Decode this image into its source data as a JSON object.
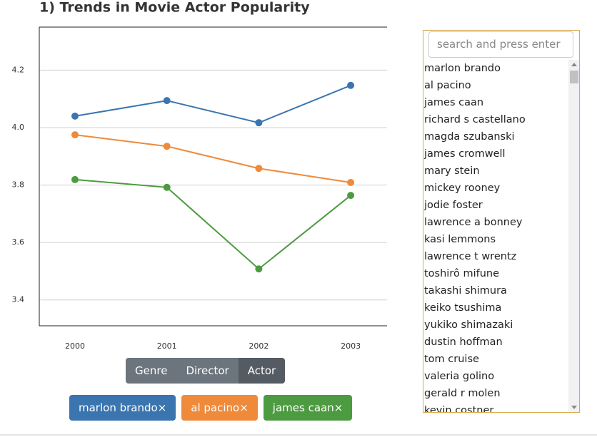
{
  "chart_data": {
    "type": "line",
    "title": "1) Trends in Movie Actor Popularity",
    "categories": [
      "2000",
      "2001",
      "2002",
      "2003"
    ],
    "series": [
      {
        "name": "marlon brando",
        "color": "#3a75b0",
        "values": [
          4.04,
          4.094,
          4.017,
          4.147
        ]
      },
      {
        "name": "al pacino",
        "color": "#ef8a3a",
        "values": [
          3.975,
          3.935,
          3.858,
          3.809
        ]
      },
      {
        "name": "james caan",
        "color": "#4d9b40",
        "values": [
          3.819,
          3.792,
          3.508,
          3.764
        ]
      }
    ],
    "ylim": [
      3.31,
      4.35
    ],
    "yticks": [
      3.4,
      3.6,
      3.8,
      {
        "value": 4,
        "label": "4.0"
      },
      4.2
    ],
    "grid": true
  },
  "ui": {
    "filter_buttons": [
      "Genre",
      "Director",
      "Actor"
    ],
    "active_button": 2,
    "remove_icon": "×",
    "search_placeholder": "search and press enter",
    "actors": [
      "marlon brando",
      "al pacino",
      "james caan",
      "richard s castellano",
      "magda szubanski",
      "james cromwell",
      "mary stein",
      "mickey rooney",
      "jodie foster",
      "lawrence a bonney",
      "kasi lemmons",
      "lawrence t wrentz",
      "toshirô mifune",
      "takashi shimura",
      "keiko tsushima",
      "yukiko shimazaki",
      "dustin hoffman",
      "tom cruise",
      "valeria golino",
      "gerald r molen",
      "kevin costner"
    ]
  }
}
